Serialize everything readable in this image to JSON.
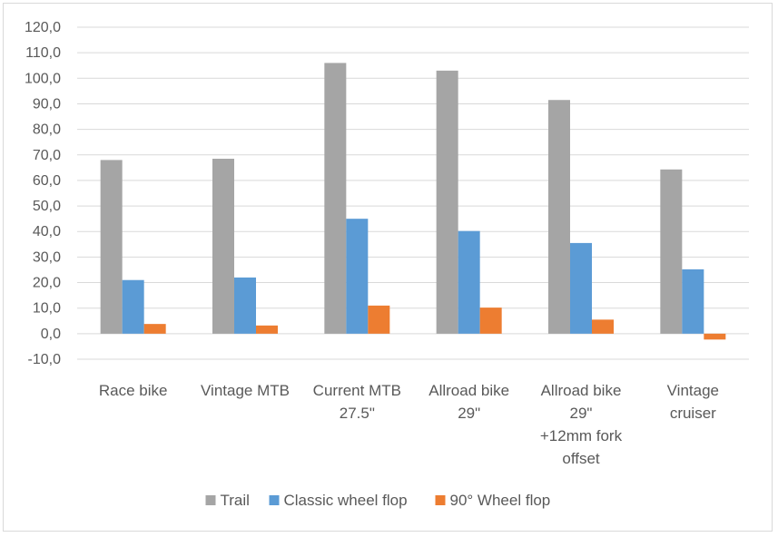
{
  "chart_data": {
    "type": "bar",
    "categories": [
      [
        "Race bike"
      ],
      [
        "Vintage MTB"
      ],
      [
        "Current MTB",
        "27.5\""
      ],
      [
        "Allroad bike",
        "29\""
      ],
      [
        "Allroad bike",
        "29\"",
        "+12mm fork",
        "offset"
      ],
      [
        "Vintage",
        "cruiser"
      ]
    ],
    "series": [
      {
        "name": "Trail",
        "color": "#a5a5a5",
        "values": [
          68.0,
          68.5,
          106.0,
          103.0,
          91.5,
          64.3
        ]
      },
      {
        "name": "Classic wheel flop",
        "color": "#5b9bd5",
        "values": [
          21.0,
          22.0,
          45.0,
          40.2,
          35.5,
          25.2
        ]
      },
      {
        "name": "90° Wheel flop",
        "color": "#ed7d31",
        "values": [
          3.8,
          3.2,
          11.0,
          10.2,
          5.5,
          -2.3
        ]
      }
    ],
    "ylim": [
      -10,
      120
    ],
    "yticks": [
      "-10,0",
      "0,0",
      "10,0",
      "20,0",
      "30,0",
      "40,0",
      "50,0",
      "60,0",
      "70,0",
      "80,0",
      "90,0",
      "100,0",
      "110,0",
      "120,0"
    ],
    "grid": true,
    "legend": "bottom"
  }
}
